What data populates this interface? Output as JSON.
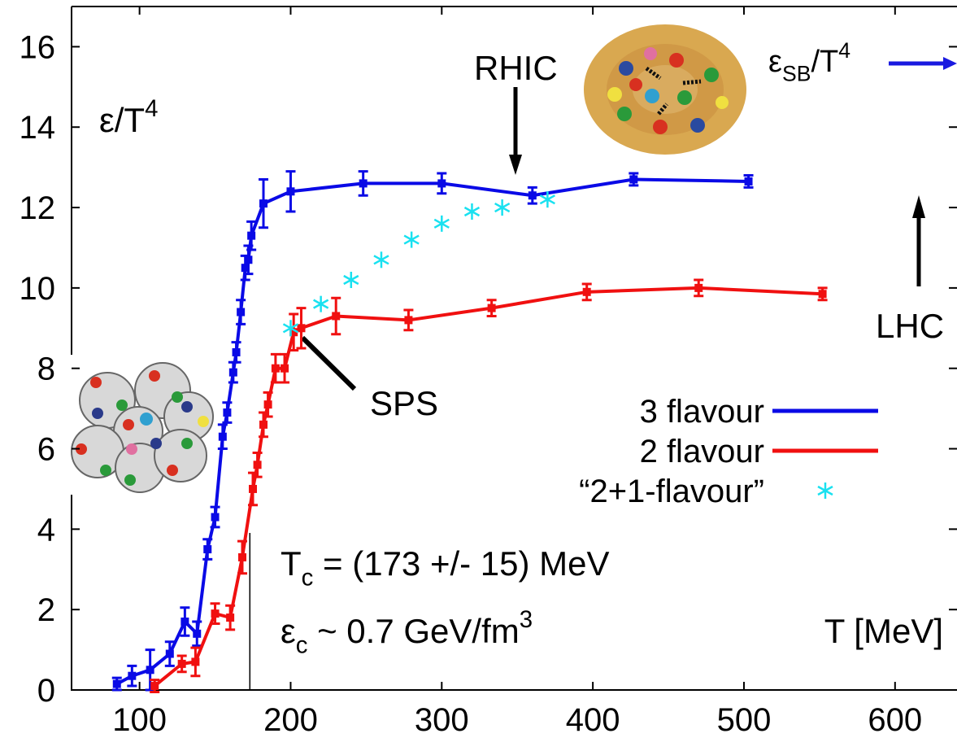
{
  "chart_data": {
    "type": "line",
    "y_label": {
      "parts": [
        {
          "text": "ε/T"
        },
        {
          "text": "4",
          "style": "sup"
        }
      ]
    },
    "x_label": "T [MeV]",
    "xlim": [
      55,
      641
    ],
    "ylim": [
      0,
      17
    ],
    "xticks": [
      100,
      200,
      300,
      400,
      500,
      600
    ],
    "yticks": [
      0,
      2,
      4,
      6,
      8,
      10,
      12,
      14,
      16
    ],
    "legend": "center-right",
    "series": [
      {
        "name": "3 flavour",
        "color": "#0a0ae6",
        "marker": "square",
        "x": [
          85,
          95,
          107,
          120,
          130,
          138,
          145,
          150,
          155,
          158,
          162,
          164,
          167,
          170,
          172,
          174,
          182,
          200,
          248,
          300,
          360,
          427,
          503
        ],
        "values": [
          0.15,
          0.35,
          0.5,
          0.9,
          1.7,
          1.4,
          3.5,
          4.3,
          6.3,
          6.9,
          7.9,
          8.4,
          9.4,
          10.5,
          10.7,
          11.3,
          12.1,
          12.4,
          12.6,
          12.6,
          12.3,
          12.7,
          12.65
        ],
        "errors": [
          0.15,
          0.25,
          0.5,
          0.3,
          0.35,
          0.3,
          0.25,
          0.25,
          0.3,
          0.25,
          0.25,
          0.25,
          0.3,
          0.3,
          0.35,
          0.35,
          0.6,
          0.5,
          0.3,
          0.25,
          0.2,
          0.15,
          0.15
        ]
      },
      {
        "name": "2 flavour",
        "color": "#f01010",
        "marker": "square",
        "x": [
          110,
          128,
          137,
          150,
          160,
          168,
          175,
          178,
          182,
          185,
          190,
          196,
          202,
          207,
          230,
          278,
          333,
          396,
          470,
          552
        ],
        "values": [
          0.1,
          0.65,
          0.7,
          1.9,
          1.8,
          3.3,
          5.0,
          5.6,
          6.6,
          7.1,
          8.0,
          8.0,
          8.9,
          9.0,
          9.3,
          9.2,
          9.5,
          9.9,
          10.0,
          9.85
        ],
        "errors": [
          0.15,
          0.2,
          0.35,
          0.25,
          0.3,
          0.4,
          0.4,
          0.3,
          0.3,
          0.3,
          0.35,
          0.35,
          0.45,
          0.5,
          0.45,
          0.25,
          0.2,
          0.2,
          0.2,
          0.15
        ]
      },
      {
        "name": "“2+1-flavour”",
        "color": "#19e1f0",
        "marker": "star",
        "x": [
          200,
          220,
          240,
          260,
          280,
          300,
          320,
          340,
          370
        ],
        "values": [
          9.0,
          9.6,
          10.2,
          10.7,
          11.2,
          11.6,
          11.9,
          12.0,
          12.2
        ]
      }
    ],
    "reference_line": {
      "x": 173
    },
    "annotations": [
      {
        "parts": [
          {
            "text": "RHIC"
          }
        ]
      },
      {
        "parts": [
          {
            "text": "LHC"
          }
        ]
      },
      {
        "parts": [
          {
            "text": "SPS"
          }
        ]
      },
      {
        "parts": [
          {
            "text": "ε"
          },
          {
            "text": "SB",
            "style": "sub"
          },
          {
            "text": "/T"
          },
          {
            "text": "4",
            "style": "sup"
          }
        ]
      },
      {
        "parts": [
          {
            "text": "T"
          },
          {
            "text": "c",
            "style": "sub"
          },
          {
            "text": " = (173 +/- 15) MeV"
          }
        ]
      },
      {
        "parts": [
          {
            "text": "ε"
          },
          {
            "text": "c",
            "style": "sub"
          },
          {
            "text": " ~ 0.7 GeV/fm"
          },
          {
            "text": "3",
            "style": "sup"
          }
        ]
      }
    ]
  }
}
